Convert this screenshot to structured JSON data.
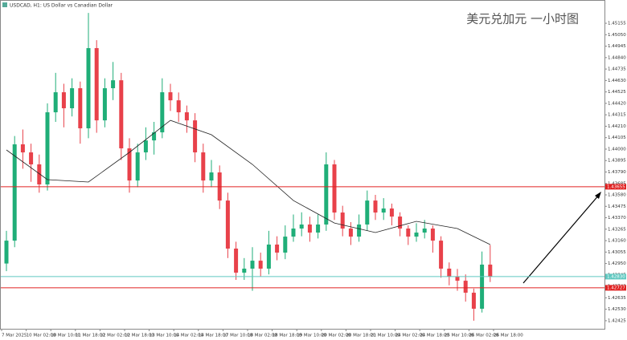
{
  "chart_data": {
    "type": "candlestick",
    "title": "USDCAD, H1:  US Dollar vs Canadian Dollar",
    "annotation": "美元兑加元 一小时图",
    "categories": [
      "7 Mar 2025",
      "10 Mar 02:00",
      "10 Mar 10:00",
      "11 Mar 18:00",
      "12 Mar 02:00",
      "12 Mar 18:00",
      "13 Mar 10:00",
      "14 Mar 02:00",
      "14 Mar 18:00",
      "17 Mar 10:00",
      "18 Mar 02:00",
      "18 Mar 18:00",
      "19 Mar 10:00",
      "20 Mar 02:00",
      "20 Mar 18:00",
      "21 Mar 10:00",
      "24 Mar 02:00",
      "24 Mar 18:00",
      "25 Mar 10:00",
      "26 Mar 02:00",
      "26 Mar 18:00"
    ],
    "open": [
      1.4295,
      1.4316,
      1.44044,
      1.4397,
      1.4386,
      1.43676,
      1.44338,
      1.44522,
      1.44375,
      1.44559,
      1.44191,
      1.44927,
      1.44264,
      1.44559,
      1.44632,
      1.44007,
      1.43712,
      1.4397,
      1.4408,
      1.44154,
      1.44522,
      1.44448,
      1.44338,
      1.44264,
      1.4397,
      1.43712,
      1.43786,
      1.43528,
      1.43087,
      1.42866,
      1.42903,
      1.42976,
      1.42903,
      1.43124,
      1.4305,
      1.43197,
      1.43271,
      1.43308,
      1.43234,
      1.43308,
      1.4386,
      1.43418,
      1.43271,
      1.43197,
      1.43308,
      1.43528,
      1.43418,
      1.43455,
      1.43381,
      1.43271,
      1.43197,
      1.43234,
      1.43271,
      1.4316,
      1.42903,
      1.42829,
      1.42792,
      1.42682,
      1.42535,
      1.4294
    ],
    "high": [
      1.4325,
      1.4412,
      1.4418,
      1.4405,
      1.4395,
      1.4442,
      1.447,
      1.446,
      1.4465,
      1.4462,
      1.4525,
      1.45,
      1.4465,
      1.448,
      1.447,
      1.441,
      1.4405,
      1.442,
      1.4425,
      1.4465,
      1.446,
      1.4452,
      1.444,
      1.4433,
      1.4405,
      1.439,
      1.4385,
      1.436,
      1.4315,
      1.43,
      1.431,
      1.4305,
      1.4325,
      1.432,
      1.433,
      1.434,
      1.4342,
      1.4338,
      1.434,
      1.4397,
      1.439,
      1.4348,
      1.4333,
      1.434,
      1.4362,
      1.4358,
      1.4355,
      1.435,
      1.4342,
      1.433,
      1.4332,
      1.4335,
      1.433,
      1.432,
      1.4296,
      1.429,
      1.4285,
      1.4272,
      1.4306,
      1.4312
    ],
    "low": [
      1.4288,
      1.431,
      1.4382,
      1.437,
      1.436,
      1.4362,
      1.4425,
      1.442,
      1.443,
      1.4405,
      1.441,
      1.4415,
      1.442,
      1.4445,
      1.439,
      1.436,
      1.4365,
      1.439,
      1.4395,
      1.441,
      1.4435,
      1.4425,
      1.4415,
      1.4388,
      1.436,
      1.4365,
      1.4345,
      1.43,
      1.428,
      1.428,
      1.427,
      1.4283,
      1.4285,
      1.4298,
      1.4299,
      1.4315,
      1.432,
      1.4315,
      1.4318,
      1.4325,
      1.4335,
      1.432,
      1.4312,
      1.4315,
      1.4325,
      1.4335,
      1.4335,
      1.433,
      1.432,
      1.4312,
      1.4315,
      1.4318,
      1.4305,
      1.4282,
      1.4275,
      1.427,
      1.426,
      1.42425,
      1.425,
      1.4278
    ],
    "close": [
      1.4316,
      1.44044,
      1.4397,
      1.4386,
      1.43676,
      1.44338,
      1.44522,
      1.44375,
      1.44559,
      1.44191,
      1.44927,
      1.44264,
      1.44559,
      1.44632,
      1.44007,
      1.43712,
      1.4397,
      1.4408,
      1.44154,
      1.44522,
      1.44448,
      1.44338,
      1.44264,
      1.4397,
      1.43712,
      1.43786,
      1.43528,
      1.43087,
      1.42866,
      1.42903,
      1.42976,
      1.42903,
      1.43124,
      1.4305,
      1.43197,
      1.43271,
      1.43308,
      1.43234,
      1.43308,
      1.4386,
      1.43418,
      1.43271,
      1.43197,
      1.43308,
      1.43528,
      1.43418,
      1.43455,
      1.43381,
      1.43271,
      1.43197,
      1.43234,
      1.43271,
      1.4316,
      1.42903,
      1.42829,
      1.42792,
      1.42682,
      1.42535,
      1.4294,
      1.42829
    ],
    "up_color": "#1fae78",
    "down_color": "#e8414a",
    "moving_average": {
      "color": "#222222",
      "x": [
        0,
        5,
        10,
        15,
        20,
        25,
        30,
        35,
        40,
        45,
        50,
        55,
        59
      ],
      "values": [
        1.43992,
        1.4372,
        1.43698,
        1.4397,
        1.44264,
        1.44132,
        1.4386,
        1.43528,
        1.43322,
        1.43234,
        1.43337,
        1.43271,
        1.43124
      ]
    },
    "hlines": [
      {
        "value": 1.43655,
        "label": "1.43655",
        "color": "#e02020"
      },
      {
        "value": 1.4283,
        "label": "1.42830",
        "color": "#5fc8c0"
      },
      {
        "value": 1.42727,
        "label": "1.42727",
        "color": "#e02020"
      }
    ],
    "ylim": [
      1.42351,
      1.45354
    ],
    "yticks": [
      1.45155,
      {
        "value": 1.4505,
        "label": "1.45050"
      },
      1.44945,
      {
        "value": 1.4484,
        "label": "1.44840"
      },
      1.44735,
      {
        "value": 1.4463,
        "label": "1.44630"
      },
      1.44525,
      {
        "value": 1.4442,
        "label": "1.44420"
      },
      1.44315,
      {
        "value": 1.4421,
        "label": "1.44210"
      },
      1.44105,
      {
        "value": 1.44,
        "label": "1.44000"
      },
      1.43895,
      {
        "value": 1.4379,
        "label": "1.43790"
      },
      1.43685,
      {
        "value": 1.4358,
        "label": "1.43580"
      },
      1.43475,
      {
        "value": 1.4337,
        "label": "1.43370"
      },
      1.43265,
      {
        "value": 1.4316,
        "label": "1.43160"
      },
      1.43055,
      {
        "value": 1.4295,
        "label": "1.42950"
      },
      1.42845,
      {
        "value": 1.4274,
        "label": "1.42740"
      },
      1.42635,
      {
        "value": 1.4253,
        "label": "1.42530"
      },
      1.42425
    ]
  }
}
